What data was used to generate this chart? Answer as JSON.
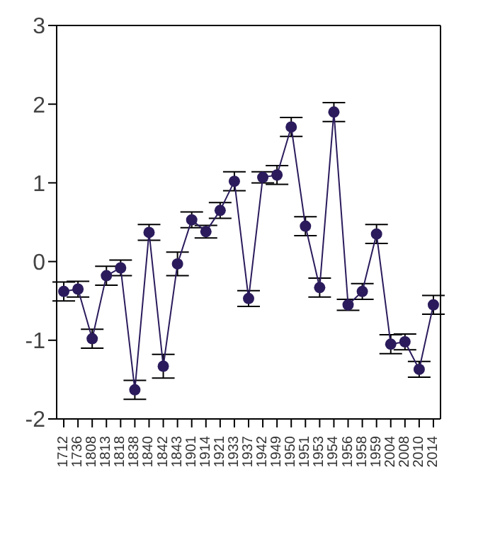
{
  "chart_data": {
    "type": "line",
    "categories": [
      "1712",
      "1736",
      "1808",
      "1813",
      "1818",
      "1838",
      "1840",
      "1842",
      "1843",
      "1901",
      "1914",
      "1921",
      "1933",
      "1937",
      "1942",
      "1949",
      "1950",
      "1951",
      "1953",
      "1954",
      "1956",
      "1958",
      "1959",
      "2004",
      "2008",
      "2010",
      "2014"
    ],
    "series": [
      {
        "color": "#2b1b5c",
        "values": [
          -0.38,
          -0.35,
          -0.98,
          -0.18,
          -0.08,
          -1.63,
          0.37,
          -1.33,
          -0.03,
          0.53,
          0.38,
          0.65,
          1.02,
          -0.47,
          1.07,
          1.1,
          1.71,
          0.45,
          -0.33,
          1.9,
          -0.55,
          -0.38,
          0.35,
          -1.05,
          -1.02,
          -1.37,
          -0.55
        ],
        "errors": [
          0.12,
          0.1,
          0.12,
          0.12,
          0.1,
          0.12,
          0.1,
          0.15,
          0.15,
          0.1,
          0.08,
          0.1,
          0.12,
          0.1,
          0.07,
          0.12,
          0.12,
          0.12,
          0.12,
          0.12,
          0.07,
          0.1,
          0.12,
          0.12,
          0.1,
          0.1,
          0.12
        ]
      }
    ],
    "ylim": [
      -2,
      3
    ],
    "yticks": [
      -2,
      -1,
      0,
      1,
      2,
      3
    ],
    "marker": "circle",
    "line_style": "solid"
  }
}
